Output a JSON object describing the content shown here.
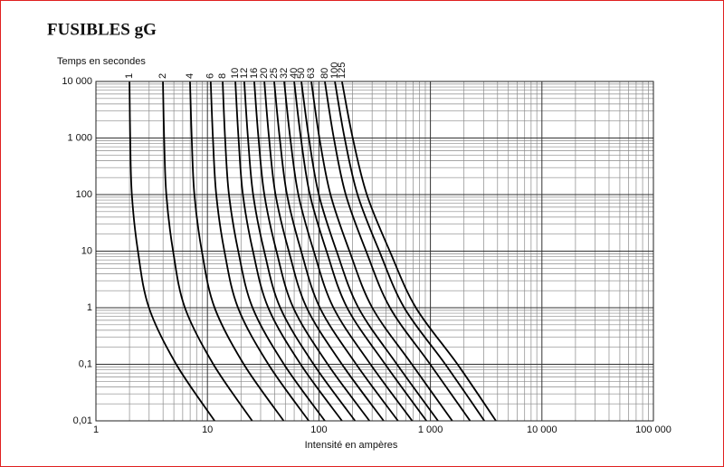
{
  "chart_data": {
    "type": "line",
    "title": "FUSIBLES gG",
    "ylabel": "Temps en secondes",
    "xlabel": "Intensité en ampères",
    "xscale": "log",
    "yscale": "log",
    "xlim": [
      1,
      100000
    ],
    "ylim": [
      0.01,
      10000
    ],
    "xticks": [
      1,
      10,
      100,
      {
        "value": 1000,
        "label": "1 000"
      },
      {
        "value": 10000,
        "label": "10 000"
      },
      {
        "value": 100000,
        "label": "100 000"
      }
    ],
    "yticks": [
      {
        "value": 0.01,
        "label": "0,01"
      },
      {
        "value": 0.1,
        "label": "0,1"
      },
      1,
      10,
      100,
      {
        "value": 1000,
        "label": "1 000"
      },
      {
        "value": 10000,
        "label": "10 000"
      }
    ],
    "xminor": [
      2,
      3,
      4,
      5,
      6,
      7,
      8,
      9,
      20,
      30,
      40,
      50,
      60,
      70,
      80,
      90,
      200,
      300,
      400,
      500,
      600,
      700,
      800,
      900,
      2000,
      3000,
      4000,
      5000,
      6000,
      7000,
      8000,
      9000,
      20000,
      30000,
      40000,
      50000,
      60000,
      70000,
      80000,
      90000
    ],
    "yminor": [
      0.02,
      0.03,
      0.04,
      0.05,
      0.06,
      0.07,
      0.08,
      0.09,
      0.2,
      0.3,
      0.4,
      0.5,
      0.6,
      0.7,
      0.8,
      0.9,
      2,
      3,
      4,
      5,
      6,
      7,
      8,
      9,
      20,
      30,
      40,
      50,
      60,
      70,
      80,
      90,
      200,
      300,
      400,
      500,
      600,
      700,
      800,
      900,
      2000,
      3000,
      4000,
      5000,
      6000,
      7000,
      8000,
      9000
    ],
    "grid": true,
    "series": [
      {
        "name": "1",
        "color": "#000000",
        "x": [
          2.0,
          2.03,
          2.1,
          2.38,
          2.99,
          5.25,
          11.6
        ],
        "values": [
          10000,
          1000,
          100,
          10,
          1,
          0.1,
          0.01
        ]
      },
      {
        "name": "2",
        "color": "#000000",
        "x": [
          3.99,
          4.09,
          4.28,
          4.92,
          6.28,
          11.3,
          25.2
        ],
        "values": [
          10000,
          1000,
          100,
          10,
          1,
          0.1,
          0.01
        ]
      },
      {
        "name": "4",
        "color": "#000000",
        "x": [
          6.98,
          7.23,
          7.64,
          8.91,
          11.6,
          21.2,
          48.3
        ],
        "values": [
          10000,
          1000,
          100,
          10,
          1,
          0.1,
          0.01
        ]
      },
      {
        "name": "6",
        "color": "#000000",
        "x": [
          10.7,
          11.2,
          12.0,
          14.2,
          18.8,
          35.2,
          81.1
        ],
        "values": [
          10000,
          1000,
          100,
          10,
          1,
          0.1,
          0.01
        ]
      },
      {
        "name": "8",
        "color": "#000000",
        "x": [
          13.7,
          14.4,
          15.6,
          18.9,
          25.4,
          48.6,
          113
        ],
        "values": [
          10000,
          1000,
          100,
          10,
          1,
          0.1,
          0.01
        ]
      },
      {
        "name": "10",
        "color": "#000000",
        "x": [
          17.8,
          19.0,
          20.8,
          25.6,
          35.1,
          68.5,
          161
        ],
        "values": [
          10000,
          1000,
          100,
          10,
          1,
          0.1,
          0.01
        ]
      },
      {
        "name": "12",
        "color": "#000000",
        "x": [
          21.4,
          23.1,
          25.7,
          32.3,
          45.0,
          89.7,
          211
        ],
        "values": [
          10000,
          1000,
          100,
          10,
          1,
          0.1,
          0.01
        ]
      },
      {
        "name": "16",
        "color": "#000000",
        "x": [
          26.3,
          28.7,
          32.4,
          41.6,
          58.9,
          120,
          284
        ],
        "values": [
          10000,
          1000,
          100,
          10,
          1,
          0.1,
          0.01
        ]
      },
      {
        "name": "20",
        "color": "#000000",
        "x": [
          32.4,
          35.7,
          40.8,
          53.7,
          77.6,
          161,
          381
        ],
        "values": [
          10000,
          1000,
          100,
          10,
          1,
          0.1,
          0.01
        ]
      },
      {
        "name": "25",
        "color": "#000000",
        "x": [
          39.7,
          44.5,
          51.7,
          69.3,
          102,
          216,
          512
        ],
        "values": [
          10000,
          1000,
          100,
          10,
          1,
          0.1,
          0.01
        ]
      },
      {
        "name": "32",
        "color": "#000000",
        "x": [
          48.8,
          55.3,
          65.4,
          89.9,
          135,
          290,
          687
        ],
        "values": [
          10000,
          1000,
          100,
          10,
          1,
          0.1,
          0.01
        ]
      },
      {
        "name": "40",
        "color": "#000000",
        "x": [
          60.0,
          68.9,
          83.0,
          117,
          179,
          393,
          922
        ],
        "values": [
          10000,
          1000,
          100,
          10,
          1,
          0.1,
          0.01
        ]
      },
      {
        "name": "50",
        "color": "#000000",
        "x": [
          69.6,
          81.3,
          99.8,
          144,
          226,
          501,
          1170
        ],
        "values": [
          10000,
          1000,
          100,
          10,
          1,
          0.1,
          0.01
        ]
      },
      {
        "name": "63",
        "color": "#000000",
        "x": [
          85.5,
          101,
          127,
          188,
          301,
          682,
          1570
        ],
        "values": [
          10000,
          1000,
          100,
          10,
          1,
          0.1,
          0.01
        ]
      },
      {
        "name": "80",
        "color": "#000000",
        "x": [
          113,
          136,
          174,
          265,
          434,
          995,
          2270
        ],
        "values": [
          10000,
          1000,
          100,
          10,
          1,
          0.1,
          0.01
        ]
      },
      {
        "name": "100",
        "color": "#000000",
        "x": [
          139,
          170,
          222,
          348,
          582,
          1360,
          3050
        ],
        "values": [
          10000,
          1000,
          100,
          10,
          1,
          0.1,
          0.01
        ]
      },
      {
        "name": "125",
        "color": "#000000",
        "x": [
          161,
          201,
          269,
          432,
          741,
          1750,
          3870
        ],
        "values": [
          10000,
          1000,
          100,
          10,
          1,
          0.1,
          0.01
        ]
      }
    ]
  }
}
